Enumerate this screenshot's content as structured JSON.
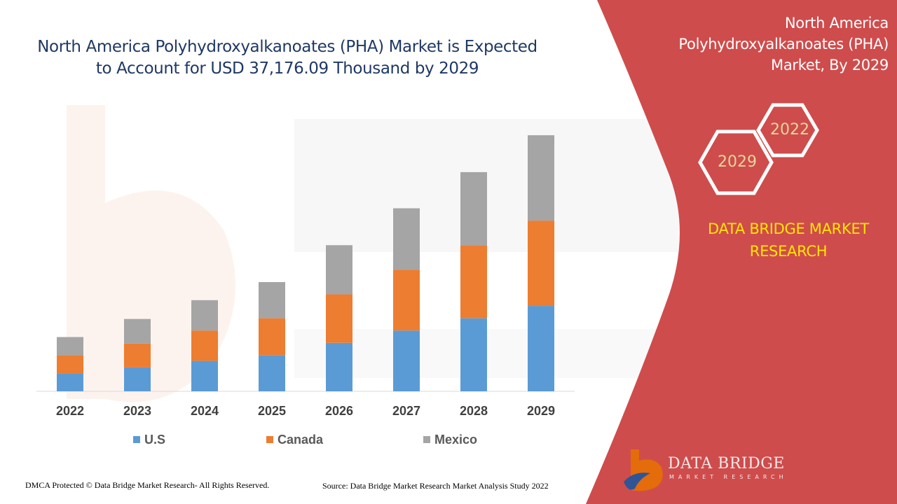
{
  "chart_data": {
    "type": "bar",
    "stacked": true,
    "title": "North America Polyhydroxyalkanoates (PHA) Market is Expected to Account for USD 37,176.09 Thousand by 2029",
    "categories": [
      "2022",
      "2023",
      "2024",
      "2025",
      "2026",
      "2027",
      "2028",
      "2029"
    ],
    "series": [
      {
        "name": "U.S",
        "color": "#5b9bd5",
        "values": [
          25,
          33,
          42,
          50,
          67,
          84,
          101,
          118
        ]
      },
      {
        "name": "Canada",
        "color": "#ed7d31",
        "values": [
          25,
          33,
          42,
          51,
          67,
          84,
          101,
          118
        ]
      },
      {
        "name": "Mexico",
        "color": "#a5a5a5",
        "values": [
          25,
          34,
          42,
          50,
          68,
          85,
          101,
          118
        ]
      }
    ],
    "ylim": [
      0,
      360
    ],
    "grid": false,
    "legend_position": "bottom"
  },
  "side_panel": {
    "title": "North America Polyhydroxyalkanoates (PHA) Market, By 2029",
    "hex_back_label": "2022",
    "hex_front_label": "2029",
    "brand_text": "DATA BRIDGE MARKET RESEARCH",
    "background_color": "#cf4c4c",
    "brand_color": "#ffe600"
  },
  "footer": {
    "copyright": "DMCA Protected © Data Bridge Market Research- All Rights Reserved.",
    "source": "Source: Data Bridge Market Research Market Analysis Study 2022"
  },
  "logo": {
    "name": "DATA BRIDGE",
    "tagline": "MARKET RESEARCH"
  }
}
